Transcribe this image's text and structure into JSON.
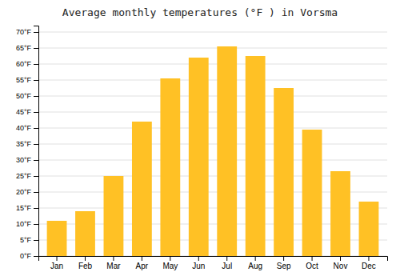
{
  "chart_data": {
    "type": "bar",
    "title": "Average monthly temperatures (°F ) in Vorsma",
    "categories": [
      "Jan",
      "Feb",
      "Mar",
      "Apr",
      "May",
      "Jun",
      "Jul",
      "Aug",
      "Sep",
      "Oct",
      "Nov",
      "Dec"
    ],
    "values": [
      11,
      14,
      25,
      42,
      55.5,
      62,
      65.5,
      62.5,
      52.5,
      39.5,
      26.5,
      17
    ],
    "color": "#FFC125",
    "ylim": [
      0,
      72
    ],
    "yticks": [
      {
        "value": 0,
        "label": "0°F"
      },
      {
        "value": 5,
        "label": "5°F"
      },
      {
        "value": 10,
        "label": "10°F"
      },
      {
        "value": 15,
        "label": "15°F"
      },
      {
        "value": 20,
        "label": "20°F"
      },
      {
        "value": 25,
        "label": "25°F"
      },
      {
        "value": 30,
        "label": "30°F"
      },
      {
        "value": 35,
        "label": "35°F"
      },
      {
        "value": 40,
        "label": "40°F"
      },
      {
        "value": 45,
        "label": "45°F"
      },
      {
        "value": 50,
        "label": "50°F"
      },
      {
        "value": 55,
        "label": "55°F"
      },
      {
        "value": 60,
        "label": "60°F"
      },
      {
        "value": 65,
        "label": "65°F"
      },
      {
        "value": 70,
        "label": "70°F"
      }
    ],
    "grid": true
  }
}
